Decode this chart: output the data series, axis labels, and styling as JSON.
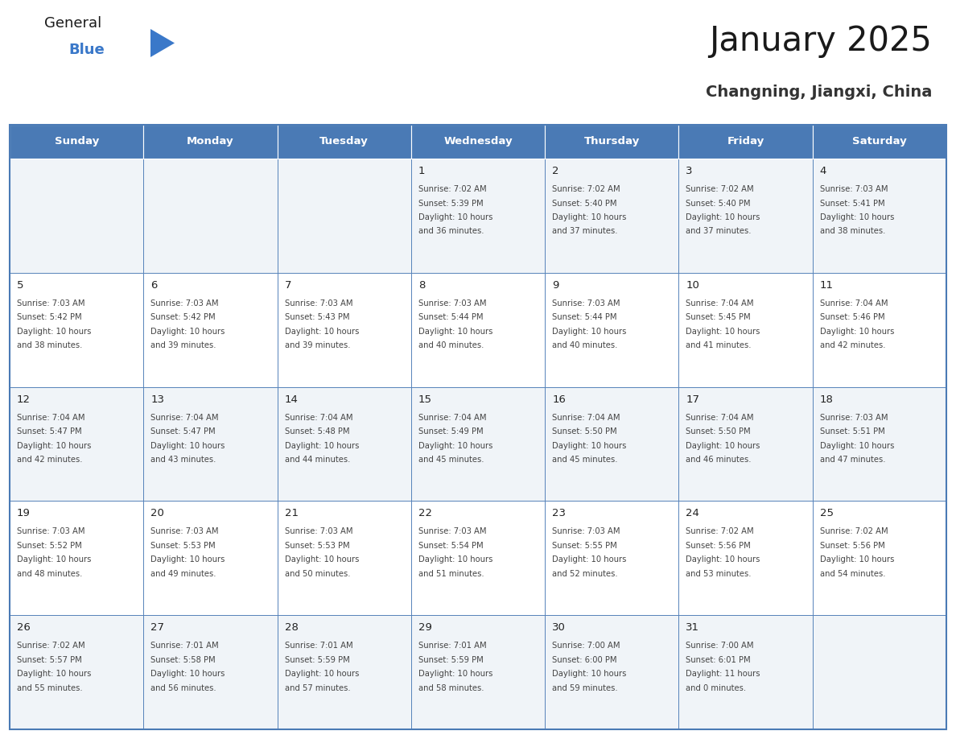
{
  "title": "January 2025",
  "subtitle": "Changning, Jiangxi, China",
  "days_of_week": [
    "Sunday",
    "Monday",
    "Tuesday",
    "Wednesday",
    "Thursday",
    "Friday",
    "Saturday"
  ],
  "header_bg": "#4a7ab5",
  "header_text": "#FFFFFF",
  "cell_bg_odd": "#F0F4F8",
  "cell_bg_even": "#FFFFFF",
  "cell_border_color": "#4a7ab5",
  "day_number_color": "#222222",
  "text_color": "#444444",
  "title_color": "#1a1a1a",
  "subtitle_color": "#333333",
  "logo_general_color": "#1a1a1a",
  "logo_blue_color": "#3a78c9",
  "logo_triangle_color": "#3a78c9",
  "calendar": [
    [
      {
        "day": null,
        "sunrise": null,
        "sunset": null,
        "daylight": null
      },
      {
        "day": null,
        "sunrise": null,
        "sunset": null,
        "daylight": null
      },
      {
        "day": null,
        "sunrise": null,
        "sunset": null,
        "daylight": null
      },
      {
        "day": 1,
        "sunrise": "7:02 AM",
        "sunset": "5:39 PM",
        "daylight": "10 hours and 36 minutes."
      },
      {
        "day": 2,
        "sunrise": "7:02 AM",
        "sunset": "5:40 PM",
        "daylight": "10 hours and 37 minutes."
      },
      {
        "day": 3,
        "sunrise": "7:02 AM",
        "sunset": "5:40 PM",
        "daylight": "10 hours and 37 minutes."
      },
      {
        "day": 4,
        "sunrise": "7:03 AM",
        "sunset": "5:41 PM",
        "daylight": "10 hours and 38 minutes."
      }
    ],
    [
      {
        "day": 5,
        "sunrise": "7:03 AM",
        "sunset": "5:42 PM",
        "daylight": "10 hours and 38 minutes."
      },
      {
        "day": 6,
        "sunrise": "7:03 AM",
        "sunset": "5:42 PM",
        "daylight": "10 hours and 39 minutes."
      },
      {
        "day": 7,
        "sunrise": "7:03 AM",
        "sunset": "5:43 PM",
        "daylight": "10 hours and 39 minutes."
      },
      {
        "day": 8,
        "sunrise": "7:03 AM",
        "sunset": "5:44 PM",
        "daylight": "10 hours and 40 minutes."
      },
      {
        "day": 9,
        "sunrise": "7:03 AM",
        "sunset": "5:44 PM",
        "daylight": "10 hours and 40 minutes."
      },
      {
        "day": 10,
        "sunrise": "7:04 AM",
        "sunset": "5:45 PM",
        "daylight": "10 hours and 41 minutes."
      },
      {
        "day": 11,
        "sunrise": "7:04 AM",
        "sunset": "5:46 PM",
        "daylight": "10 hours and 42 minutes."
      }
    ],
    [
      {
        "day": 12,
        "sunrise": "7:04 AM",
        "sunset": "5:47 PM",
        "daylight": "10 hours and 42 minutes."
      },
      {
        "day": 13,
        "sunrise": "7:04 AM",
        "sunset": "5:47 PM",
        "daylight": "10 hours and 43 minutes."
      },
      {
        "day": 14,
        "sunrise": "7:04 AM",
        "sunset": "5:48 PM",
        "daylight": "10 hours and 44 minutes."
      },
      {
        "day": 15,
        "sunrise": "7:04 AM",
        "sunset": "5:49 PM",
        "daylight": "10 hours and 45 minutes."
      },
      {
        "day": 16,
        "sunrise": "7:04 AM",
        "sunset": "5:50 PM",
        "daylight": "10 hours and 45 minutes."
      },
      {
        "day": 17,
        "sunrise": "7:04 AM",
        "sunset": "5:50 PM",
        "daylight": "10 hours and 46 minutes."
      },
      {
        "day": 18,
        "sunrise": "7:03 AM",
        "sunset": "5:51 PM",
        "daylight": "10 hours and 47 minutes."
      }
    ],
    [
      {
        "day": 19,
        "sunrise": "7:03 AM",
        "sunset": "5:52 PM",
        "daylight": "10 hours and 48 minutes."
      },
      {
        "day": 20,
        "sunrise": "7:03 AM",
        "sunset": "5:53 PM",
        "daylight": "10 hours and 49 minutes."
      },
      {
        "day": 21,
        "sunrise": "7:03 AM",
        "sunset": "5:53 PM",
        "daylight": "10 hours and 50 minutes."
      },
      {
        "day": 22,
        "sunrise": "7:03 AM",
        "sunset": "5:54 PM",
        "daylight": "10 hours and 51 minutes."
      },
      {
        "day": 23,
        "sunrise": "7:03 AM",
        "sunset": "5:55 PM",
        "daylight": "10 hours and 52 minutes."
      },
      {
        "day": 24,
        "sunrise": "7:02 AM",
        "sunset": "5:56 PM",
        "daylight": "10 hours and 53 minutes."
      },
      {
        "day": 25,
        "sunrise": "7:02 AM",
        "sunset": "5:56 PM",
        "daylight": "10 hours and 54 minutes."
      }
    ],
    [
      {
        "day": 26,
        "sunrise": "7:02 AM",
        "sunset": "5:57 PM",
        "daylight": "10 hours and 55 minutes."
      },
      {
        "day": 27,
        "sunrise": "7:01 AM",
        "sunset": "5:58 PM",
        "daylight": "10 hours and 56 minutes."
      },
      {
        "day": 28,
        "sunrise": "7:01 AM",
        "sunset": "5:59 PM",
        "daylight": "10 hours and 57 minutes."
      },
      {
        "day": 29,
        "sunrise": "7:01 AM",
        "sunset": "5:59 PM",
        "daylight": "10 hours and 58 minutes."
      },
      {
        "day": 30,
        "sunrise": "7:00 AM",
        "sunset": "6:00 PM",
        "daylight": "10 hours and 59 minutes."
      },
      {
        "day": 31,
        "sunrise": "7:00 AM",
        "sunset": "6:01 PM",
        "daylight": "11 hours and 0 minutes."
      },
      {
        "day": null,
        "sunrise": null,
        "sunset": null,
        "daylight": null
      }
    ]
  ]
}
